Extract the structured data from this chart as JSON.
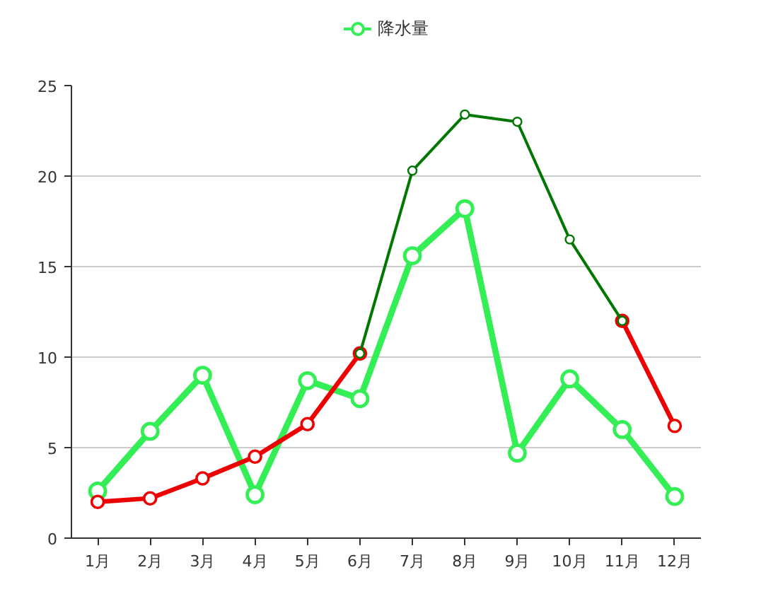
{
  "chart_data": {
    "type": "line",
    "categories": [
      "1月",
      "2月",
      "3月",
      "4月",
      "5月",
      "6月",
      "7月",
      "8月",
      "9月",
      "10月",
      "11月",
      "12月"
    ],
    "series": [
      {
        "name": "降水量",
        "color": "#33ee55",
        "values": [
          2.6,
          5.9,
          9.0,
          2.4,
          8.7,
          7.7,
          15.6,
          18.2,
          4.7,
          8.8,
          6.0,
          2.3
        ]
      },
      {
        "color": "#ee0000",
        "values": [
          2.0,
          2.2,
          3.3,
          4.5,
          6.3,
          10.2,
          null,
          null,
          null,
          null,
          12.0,
          6.2
        ]
      },
      {
        "color": "#007700",
        "values": [
          null,
          null,
          null,
          null,
          null,
          10.2,
          20.3,
          23.4,
          23.0,
          16.5,
          12.0,
          null
        ]
      }
    ],
    "ylim": [
      0,
      25
    ],
    "yticks": [
      0,
      5,
      10,
      15,
      20,
      25
    ],
    "grid": "y",
    "legend": "top",
    "marker": "circle",
    "line_style": "solid"
  }
}
